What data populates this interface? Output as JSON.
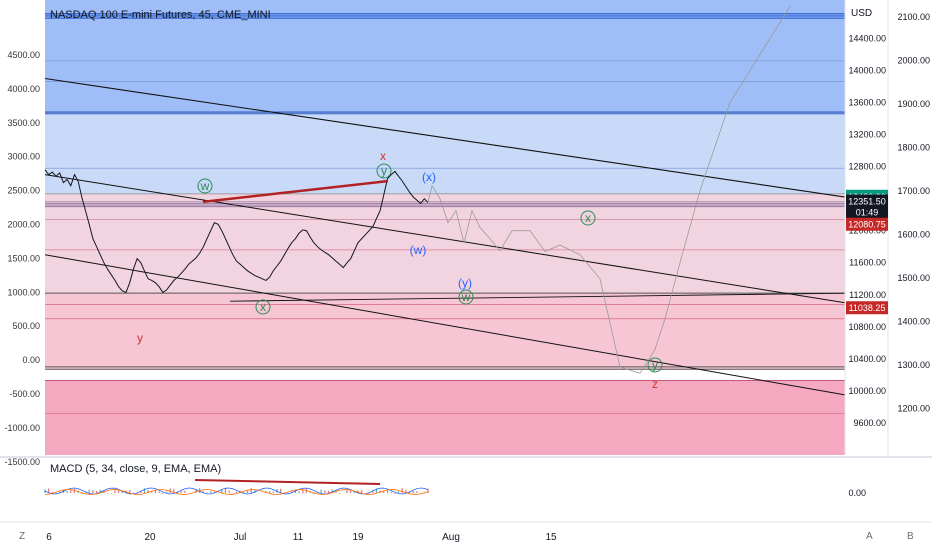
{
  "header": {
    "title": "NASDAQ 100 E-mini Futures, 45, CME_MINI"
  },
  "colors": {
    "blue_zone": "#c9daf8",
    "blue_zone_top": "#9fbdf6",
    "pink_zone": "#f1d4df",
    "pink_zone_deep": "#f4a9c0",
    "price": "#131722",
    "trend_red": "#b22222",
    "wave_green": "#2e8b57",
    "wave_blue": "#2962ff",
    "wave_red": "#d32f2f",
    "tag_green": "#089981",
    "tag_black": "#131722",
    "tag_red": "#c62828"
  },
  "chart_data": [
    {
      "type": "line",
      "title": "NASDAQ 100 E-mini Futures, 45, CME_MINI",
      "currency": "USD",
      "x_ticks": [
        "6",
        "20",
        "Jul",
        "11",
        "19",
        "Aug",
        "15"
      ],
      "y_right_ticks": [
        14400,
        14000,
        13600,
        13200,
        12800,
        12400,
        12000,
        11600,
        11200,
        10800,
        10400,
        10000,
        9600
      ],
      "y_right_range": [
        9200,
        14880
      ],
      "y_left_ticks": [
        "4500.00",
        "4000.00",
        "3500.00",
        "3000.00",
        "2500.00",
        "2000.00",
        "1500.00",
        "1000.00",
        "500.00",
        "0.00",
        "-500.00",
        "-1000.00",
        "-1500.00"
      ],
      "y_far_ticks": [
        2100,
        2000,
        1900,
        1800,
        1700,
        1600,
        1500,
        1400,
        1300,
        1200
      ],
      "price_series": [
        12760,
        12700,
        12730,
        12680,
        12720,
        12600,
        12640,
        12560,
        12700,
        12620,
        12420,
        12250,
        12080,
        11900,
        11800,
        11700,
        11600,
        11520,
        11450,
        11380,
        11300,
        11250,
        11230,
        11350,
        11520,
        11650,
        11600,
        11500,
        11400,
        11380,
        11350,
        11300,
        11230,
        11260,
        11320,
        11380,
        11420,
        11470,
        11520,
        11580,
        11620,
        11660,
        11720,
        11800,
        11900,
        12000,
        12100,
        12080,
        12000,
        11900,
        11800,
        11700,
        11620,
        11580,
        11540,
        11500,
        11470,
        11440,
        11420,
        11400,
        11380,
        11420,
        11500,
        11560,
        11620,
        11700,
        11780,
        11850,
        11900,
        11970,
        12010,
        12000,
        11920,
        11850,
        11800,
        11760,
        11730,
        11700,
        11660,
        11620,
        11580,
        11540,
        11600,
        11650,
        11750,
        11850,
        11900,
        11950,
        12000,
        12050,
        12150,
        12250,
        12450,
        12650,
        12700,
        12740,
        12680,
        12620,
        12550,
        12480,
        12420,
        12380,
        12340,
        12400,
        12351.5
      ],
      "projection": [
        12351.5,
        12560,
        12400,
        12100,
        12250,
        11850,
        12250,
        12040,
        11900,
        11750,
        12000,
        12000,
        11740,
        11820,
        11700,
        11400,
        10300,
        10220,
        10520,
        10900,
        11600,
        12500,
        13600,
        14800
      ],
      "price_labels": [
        {
          "value": 12430.0,
          "text": "12430.00"
        },
        {
          "value": 12351.5,
          "text": "12351.50",
          "sub": "01:49"
        },
        {
          "value": 12080.75,
          "text": "12080.75"
        },
        {
          "value": 11038.25,
          "text": "11038.25"
        }
      ],
      "wave_labels": [
        {
          "text": "x",
          "color": "red"
        },
        {
          "text": "y",
          "color": "red"
        },
        {
          "text": "z",
          "color": "red"
        },
        {
          "text": "w",
          "color": "green"
        },
        {
          "text": "x",
          "color": "green"
        },
        {
          "text": "y",
          "color": "green"
        },
        {
          "text": "x",
          "color": "green"
        },
        {
          "text": "w",
          "color": "green"
        },
        {
          "text": "y",
          "color": "green"
        },
        {
          "text": "(x)",
          "color": "blue"
        },
        {
          "text": "(w)",
          "color": "blue"
        },
        {
          "text": "(y)",
          "color": "blue"
        }
      ]
    },
    {
      "type": "line",
      "title": "MACD (5, 34, close, 9, EMA, EMA)",
      "y_ticks": [
        "0.00"
      ]
    }
  ],
  "controls": {
    "bottom_left": "Z",
    "bottom_right_a": "A",
    "bottom_right_b": "B"
  }
}
